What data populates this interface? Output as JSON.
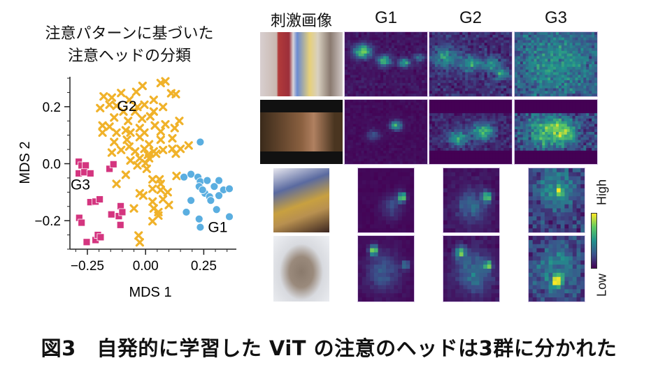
{
  "left_title": {
    "line1": "注意パターンに基づいた",
    "line2": "注意ヘッドの分類"
  },
  "column_headers": [
    "刺激画像",
    "G1",
    "G2",
    "G3"
  ],
  "colorbar": {
    "high_label": "High",
    "low_label": "Low",
    "colormap": "viridis"
  },
  "caption": "図3　自発的に学習した ViT の注意のヘッドは3群に分かれた",
  "chart_data": {
    "type": "scatter",
    "title": "注意パターンに基づいた 注意ヘッドの分類",
    "xlabel": "MDS 1",
    "ylabel": "MDS 2",
    "xlim": [
      -0.325,
      0.39
    ],
    "ylim": [
      -0.3,
      0.305
    ],
    "xticks": [
      "-0.25",
      "0.00",
      "0.25"
    ],
    "xtick_values": [
      -0.25,
      0,
      0.25
    ],
    "yticks": [
      "-0.2",
      "0.0",
      "0.2"
    ],
    "ytick_values": [
      -0.2,
      0,
      0.2
    ],
    "grid": false,
    "legend": "none (cluster labels drawn next to clusters)",
    "series": [
      {
        "name": "G1",
        "marker": "circle",
        "color": "#5aaee0",
        "label_at": [
          0.31,
          -0.24
        ],
        "points": [
          [
            0.235,
            0.076
          ],
          [
            0.165,
            -0.047
          ],
          [
            0.195,
            -0.037
          ],
          [
            0.225,
            -0.047
          ],
          [
            0.235,
            -0.063
          ],
          [
            0.265,
            -0.059
          ],
          [
            0.315,
            -0.059
          ],
          [
            0.295,
            -0.08
          ],
          [
            0.335,
            -0.092
          ],
          [
            0.36,
            -0.088
          ],
          [
            0.23,
            -0.08
          ],
          [
            0.255,
            -0.104
          ],
          [
            0.275,
            -0.116
          ],
          [
            0.28,
            -0.129
          ],
          [
            0.315,
            -0.112
          ],
          [
            0.195,
            -0.129
          ],
          [
            0.175,
            -0.17
          ],
          [
            0.305,
            -0.161
          ],
          [
            0.23,
            -0.194
          ],
          [
            0.235,
            -0.223
          ],
          [
            0.36,
            -0.186
          ],
          [
            0.245,
            -0.092
          ]
        ]
      },
      {
        "name": "G2",
        "marker": "x",
        "color": "#f0b22a",
        "label_at": [
          -0.08,
          0.185
        ],
        "points": [
          [
            0.065,
            0.283
          ],
          [
            0.085,
            0.289
          ],
          [
            -0.013,
            0.273
          ],
          [
            -0.105,
            0.248
          ],
          [
            -0.04,
            0.252
          ],
          [
            -0.18,
            0.236
          ],
          [
            -0.145,
            0.232
          ],
          [
            0.11,
            0.247
          ],
          [
            0.13,
            0.244
          ],
          [
            -0.07,
            0.224
          ],
          [
            0.035,
            0.224
          ],
          [
            -0.005,
            0.207
          ],
          [
            -0.035,
            0.199
          ],
          [
            -0.155,
            0.207
          ],
          [
            -0.125,
            0.203
          ],
          [
            -0.195,
            0.195
          ],
          [
            0.075,
            0.199
          ],
          [
            0.035,
            0.183
          ],
          [
            -0.045,
            0.183
          ],
          [
            -0.095,
            0.183
          ],
          [
            0.02,
            0.166
          ],
          [
            -0.135,
            0.162
          ],
          [
            -0.015,
            0.158
          ],
          [
            -0.075,
            0.15
          ],
          [
            0.145,
            0.15
          ],
          [
            0.085,
            0.138
          ],
          [
            -0.185,
            0.134
          ],
          [
            -0.155,
            0.13
          ],
          [
            -0.085,
            0.117
          ],
          [
            -0.025,
            0.125
          ],
          [
            -0.005,
            0.109
          ],
          [
            0.04,
            0.134
          ],
          [
            0.065,
            0.113
          ],
          [
            0.125,
            0.125
          ],
          [
            -0.125,
            0.109
          ],
          [
            -0.065,
            0.109
          ],
          [
            -0.185,
            0.109
          ],
          [
            -0.025,
            0.093
          ],
          [
            -0.135,
            0.076
          ],
          [
            -0.08,
            0.084
          ],
          [
            0.065,
            0.084
          ],
          [
            0.115,
            0.089
          ],
          [
            0.015,
            0.068
          ],
          [
            -0.07,
            0.06
          ],
          [
            -0.105,
            0.048
          ],
          [
            -0.045,
            0.043
          ],
          [
            -0.005,
            0.052
          ],
          [
            0.035,
            0.043
          ],
          [
            0.075,
            0.048
          ],
          [
            0.115,
            0.052
          ],
          [
            0.15,
            0.052
          ],
          [
            0.185,
            0.064
          ],
          [
            -0.145,
            0.039
          ],
          [
            0.01,
            0.031
          ],
          [
            0.045,
            0.035
          ],
          [
            -0.025,
            0.019
          ],
          [
            0.13,
            0.035
          ],
          [
            -0.065,
            0.011
          ],
          [
            0,
            0.002
          ],
          [
            0.015,
            0.019
          ],
          [
            -0.035,
            -0.006
          ],
          [
            0.005,
            -0.018
          ],
          [
            -0.085,
            -0.039
          ],
          [
            -0.125,
            -0.071
          ],
          [
            -0.025,
            -0.104
          ],
          [
            -0.01,
            -0.112
          ],
          [
            0.03,
            -0.055
          ],
          [
            0.03,
            -0.088
          ],
          [
            0.06,
            -0.055
          ],
          [
            0.065,
            -0.071
          ],
          [
            0.065,
            -0.092
          ],
          [
            0.095,
            -0.1
          ],
          [
            0.075,
            -0.125
          ],
          [
            0.03,
            -0.133
          ],
          [
            0.1,
            -0.145
          ],
          [
            0.035,
            -0.157
          ],
          [
            0.055,
            -0.17
          ],
          [
            -0.05,
            -0.157
          ],
          [
            0.03,
            -0.202
          ],
          [
            0.055,
            -0.182
          ],
          [
            0.133,
            -0.043
          ],
          [
            -0.03,
            -0.252
          ],
          [
            -0.025,
            -0.276
          ]
        ]
      },
      {
        "name": "G3",
        "marker": "square",
        "color": "#d4357f",
        "label_at": [
          -0.28,
          -0.09
        ],
        "points": [
          [
            -0.287,
            0.007
          ],
          [
            -0.275,
            -0.006
          ],
          [
            -0.257,
            -0.006
          ],
          [
            -0.287,
            -0.034
          ],
          [
            -0.263,
            -0.03
          ],
          [
            -0.237,
            -0.034
          ],
          [
            -0.155,
            -0.018
          ],
          [
            -0.138,
            -0.002
          ],
          [
            -0.237,
            -0.135
          ],
          [
            -0.215,
            -0.133
          ],
          [
            -0.197,
            -0.125
          ],
          [
            -0.285,
            -0.19
          ],
          [
            -0.275,
            -0.207
          ],
          [
            -0.253,
            -0.275
          ],
          [
            -0.215,
            -0.268
          ],
          [
            -0.205,
            -0.25
          ],
          [
            -0.193,
            -0.258
          ],
          [
            -0.147,
            -0.178
          ],
          [
            -0.115,
            -0.184
          ],
          [
            -0.107,
            -0.149
          ],
          [
            -0.1,
            -0.17
          ],
          [
            -0.108,
            -0.215
          ]
        ]
      }
    ]
  }
}
